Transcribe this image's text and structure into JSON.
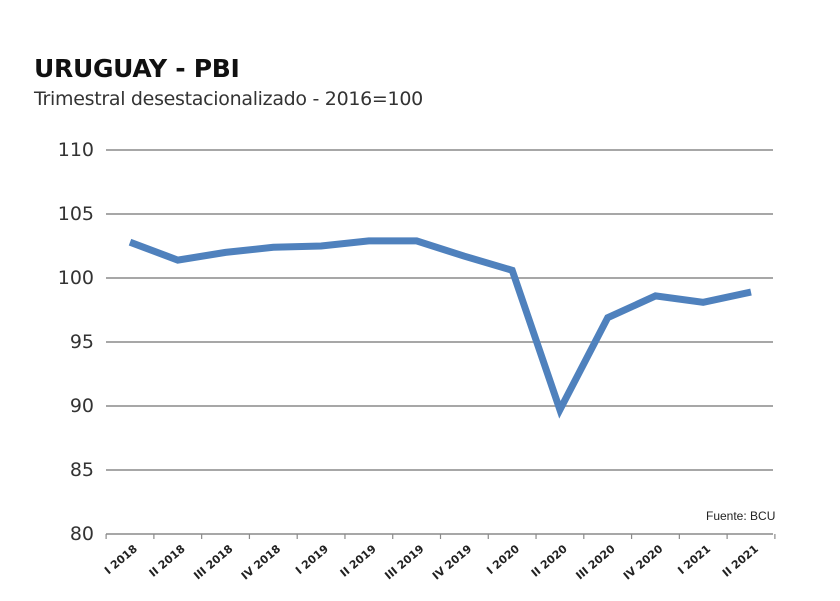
{
  "chart_data": {
    "type": "line",
    "title": "URUGUAY - PBI",
    "subtitle": "Trimestral desestacionalizado - 2016=100",
    "source": "Fuente: BCU",
    "categories": [
      "I 2018",
      "II 2018",
      "III 2018",
      "IV 2018",
      "I 2019",
      "II 2019",
      "III 2019",
      "IV 2019",
      "I 2020",
      "II 2020",
      "III 2020",
      "IV 2020",
      "I 2021",
      "II 2021"
    ],
    "series": [
      {
        "values": [
          102.8,
          101.4,
          102.0,
          102.4,
          102.5,
          102.9,
          102.9,
          101.7,
          100.6,
          89.7,
          96.9,
          98.6,
          98.1,
          98.9
        ]
      }
    ],
    "ylim": [
      80,
      110
    ],
    "yticks": [
      "80",
      "85",
      "90",
      "95",
      "100",
      "105",
      "110"
    ],
    "grid": true,
    "line_color": "#4f81bd",
    "grid_color": "#8a8a8a"
  }
}
